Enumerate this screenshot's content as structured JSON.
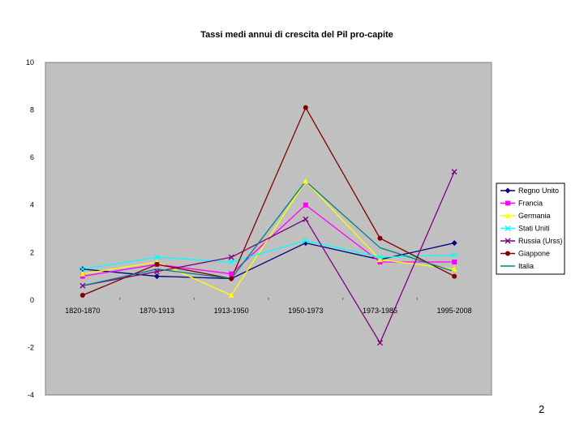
{
  "page_number": "2",
  "chart_data": {
    "type": "line",
    "title": "Tassi medi annui di crescita del Pil pro-capite",
    "xlabel": "",
    "ylabel": "",
    "categories": [
      "1820-1870",
      "1870-1913",
      "1913-1950",
      "1950-1973",
      "1973-1985",
      "1995-2008"
    ],
    "ylim": [
      -4,
      10
    ],
    "yticks": [
      "10",
      "8",
      "6",
      "4",
      "2",
      "0",
      "-2",
      "-4"
    ],
    "grid": false,
    "plot_background": "#c0c0c0",
    "legend_position": "right",
    "series": [
      {
        "name": "Regno Unito",
        "color": "#000080",
        "marker": "diamond",
        "values": [
          1.3,
          1.0,
          0.9,
          2.4,
          1.7,
          2.4
        ]
      },
      {
        "name": "Francia",
        "color": "#ff00ff",
        "marker": "square",
        "values": [
          1.0,
          1.5,
          1.1,
          4.0,
          1.6,
          1.6
        ]
      },
      {
        "name": "Germania",
        "color": "#ffff00",
        "marker": "triangle",
        "values": [
          1.1,
          1.6,
          0.2,
          5.0,
          1.7,
          1.3
        ]
      },
      {
        "name": "Stati Uniti",
        "color": "#00ffff",
        "marker": "x",
        "values": [
          1.3,
          1.8,
          1.6,
          2.5,
          1.8,
          1.9
        ]
      },
      {
        "name": "Russia (Urss)",
        "color": "#800080",
        "marker": "x",
        "values": [
          0.6,
          1.2,
          1.8,
          3.4,
          -1.8,
          5.4
        ]
      },
      {
        "name": "Giappone",
        "color": "#800000",
        "marker": "circle",
        "values": [
          0.2,
          1.5,
          0.9,
          8.1,
          2.6,
          1.0
        ]
      },
      {
        "name": "Italia",
        "color": "#008080",
        "marker": "none",
        "values": [
          0.6,
          1.3,
          0.9,
          5.0,
          2.2,
          1.2
        ]
      }
    ]
  }
}
